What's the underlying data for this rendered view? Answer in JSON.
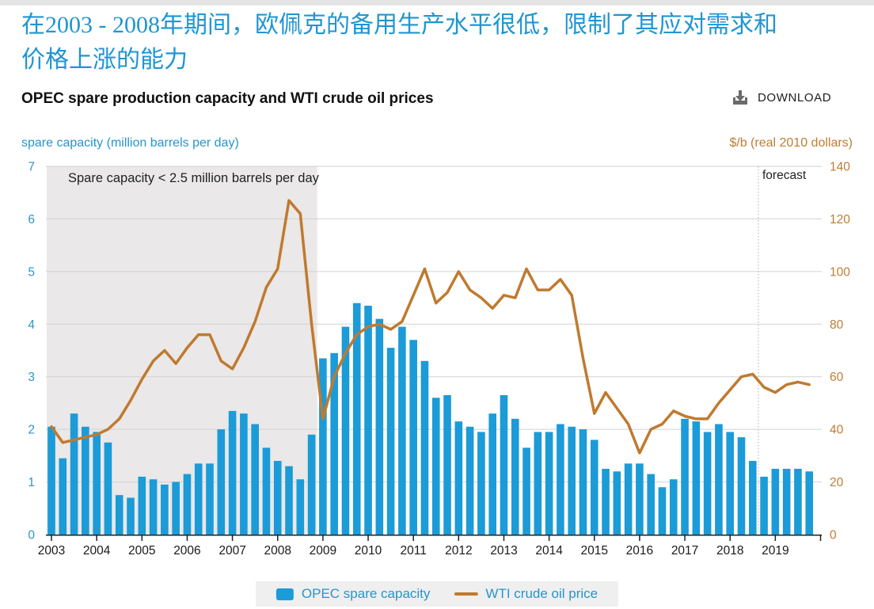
{
  "page": {
    "headline": "在2003 - 2008年期间，欧佩克的备用生产水平很低，限制了其应对需求和价格上涨的能力",
    "chart_title": "OPEC spare production capacity and WTI crude oil prices",
    "download_label": "DOWNLOAD"
  },
  "axes": {
    "left_title": "spare capacity (million barrels per day)",
    "right_title": "$/b (real 2010 dollars)"
  },
  "annotations": {
    "shaded_label": "Spare capacity < 2.5 million barrels per day",
    "forecast_label": "forecast"
  },
  "legend": {
    "items": [
      {
        "label": "OPEC spare capacity",
        "swatch": "bar",
        "color": "#1b9bd7"
      },
      {
        "label": "WTI crude oil price",
        "swatch": "line",
        "color": "#bf7a2f"
      }
    ]
  },
  "colors": {
    "bar_blue": "#1b9bd7",
    "line_orange": "#bf7a2f",
    "headline_blue": "#2095d2",
    "left_axis_text": "#2b96cb",
    "right_axis_text": "#c07c35",
    "x_axis_text": "#1a1a1a",
    "gridline": "#d2d2d2",
    "axis_black": "#231f20",
    "shading": "#eae8e8",
    "legend_bg": "#efefef"
  },
  "chart_data": {
    "type": "bar+line",
    "title": "OPEC spare production capacity and WTI crude oil prices",
    "x_years": [
      2003,
      2004,
      2005,
      2006,
      2007,
      2008,
      2009,
      2010,
      2011,
      2012,
      2013,
      2014,
      2015,
      2016,
      2017,
      2018,
      2019
    ],
    "quarters_per_year": 4,
    "left_axis": {
      "min": 0,
      "max": 7,
      "step": 1,
      "title": "spare capacity (million barrels per day)"
    },
    "right_axis": {
      "min": 0,
      "max": 140,
      "step": 20,
      "title": "$/b (real 2010 dollars)"
    },
    "grid": true,
    "legend_position": "bottom",
    "shaded_region": {
      "start_index": 0,
      "end_index": 23,
      "label": "Spare capacity < 2.5 million barrels per day"
    },
    "forecast": {
      "start_index": 63,
      "start_year": 2018,
      "start_quarter": 4,
      "label": "forecast"
    },
    "series": [
      {
        "name": "OPEC spare capacity",
        "type": "bar",
        "axis": "left",
        "unit": "million barrels per day",
        "color": "#1b9bd7",
        "values": [
          2.05,
          1.45,
          2.3,
          2.05,
          1.95,
          1.75,
          0.75,
          0.7,
          1.1,
          1.05,
          0.95,
          1.0,
          1.15,
          1.35,
          1.35,
          2.0,
          2.35,
          2.3,
          2.1,
          1.65,
          1.4,
          1.3,
          1.05,
          1.9,
          3.35,
          3.45,
          3.95,
          4.4,
          4.35,
          4.1,
          3.55,
          3.95,
          3.7,
          3.3,
          2.6,
          2.65,
          2.15,
          2.05,
          1.95,
          2.3,
          2.65,
          2.2,
          1.65,
          1.95,
          1.95,
          2.1,
          2.05,
          2.0,
          1.8,
          1.25,
          1.2,
          1.35,
          1.35,
          1.15,
          0.9,
          1.05,
          2.2,
          2.15,
          1.95,
          2.1,
          1.95,
          1.85,
          1.4,
          1.1,
          1.25,
          1.25,
          1.25,
          1.2
        ]
      },
      {
        "name": "WTI crude oil price",
        "type": "line",
        "axis": "right",
        "unit": "$/b (real 2010 dollars)",
        "color": "#bf7a2f",
        "values": [
          41,
          35,
          36,
          37,
          38,
          40,
          44,
          51,
          59,
          66,
          70,
          65,
          71,
          76,
          76,
          66,
          63,
          71,
          81,
          94,
          101,
          127,
          122,
          80,
          44,
          60,
          69,
          76,
          79,
          80,
          78,
          81,
          91,
          101,
          88,
          92,
          100,
          93,
          90,
          86,
          91,
          90,
          101,
          93,
          93,
          97,
          91,
          67,
          46,
          54,
          48,
          42,
          31,
          40,
          42,
          47,
          45,
          44,
          44,
          50,
          55,
          60,
          61,
          56,
          54,
          57,
          58,
          57
        ]
      }
    ]
  }
}
